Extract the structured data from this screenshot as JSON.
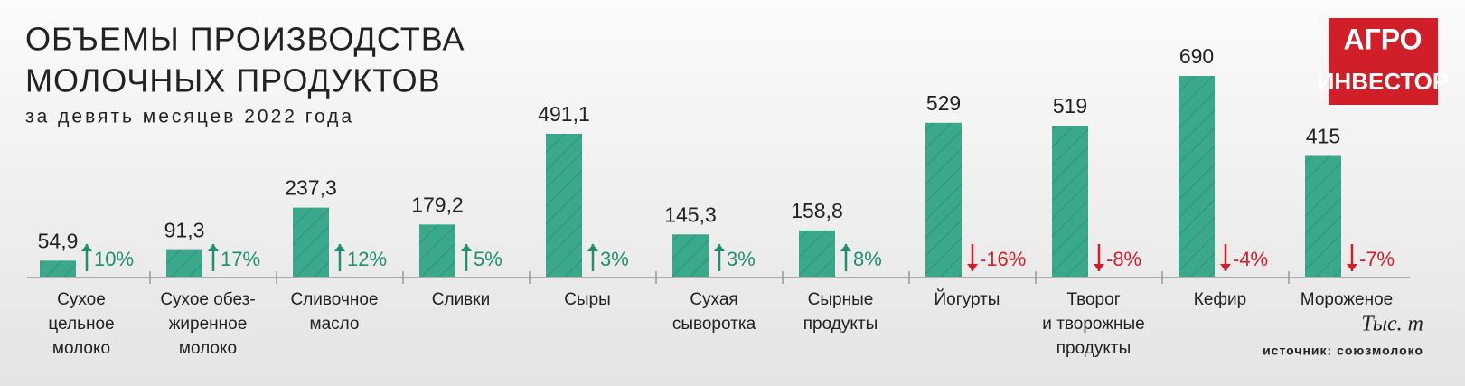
{
  "chart_data": {
    "type": "bar",
    "title": [
      "ОБЪЕМЫ ПРОИЗВОДСТВА",
      "МОЛОЧНЫХ ПРОДУКТОВ"
    ],
    "subtitle": "за девять месяцев 2022 года",
    "categories": [
      [
        "Сухое",
        "цельное",
        "молоко"
      ],
      [
        "Сухое обез-",
        "жиренное",
        "молоко"
      ],
      [
        "Сливочное",
        "масло"
      ],
      [
        "Сливки"
      ],
      [
        "Сыры"
      ],
      [
        "Сухая",
        "сыворотка"
      ],
      [
        "Сырные",
        "продукты"
      ],
      [
        "Йогурты"
      ],
      [
        "Творог",
        "и творожные",
        "продукты"
      ],
      [
        "Кефир"
      ],
      [
        "Мороженое"
      ]
    ],
    "values": [
      54.9,
      91.3,
      237.3,
      179.2,
      491.1,
      145.3,
      158.8,
      529,
      519,
      690,
      415
    ],
    "value_labels": [
      "54,9",
      "91,3",
      "237,3",
      "179,2",
      "491,1",
      "145,3",
      "158,8",
      "529",
      "519",
      "690",
      "415"
    ],
    "changes": [
      10,
      17,
      12,
      5,
      3,
      3,
      8,
      -16,
      -8,
      -4,
      -7
    ],
    "change_labels": [
      "10%",
      "17%",
      "12%",
      "5%",
      "3%",
      "3%",
      "8%",
      "-16%",
      "-8%",
      "-4%",
      "-7%"
    ],
    "color": "#3aa88a",
    "up_color": "#1f8f70",
    "down_color": "#d11f2a",
    "unit": "Тыс. т",
    "source": "источник: союзмолоко",
    "logo": [
      "АГРО",
      "ИНВЕСТОР"
    ]
  }
}
